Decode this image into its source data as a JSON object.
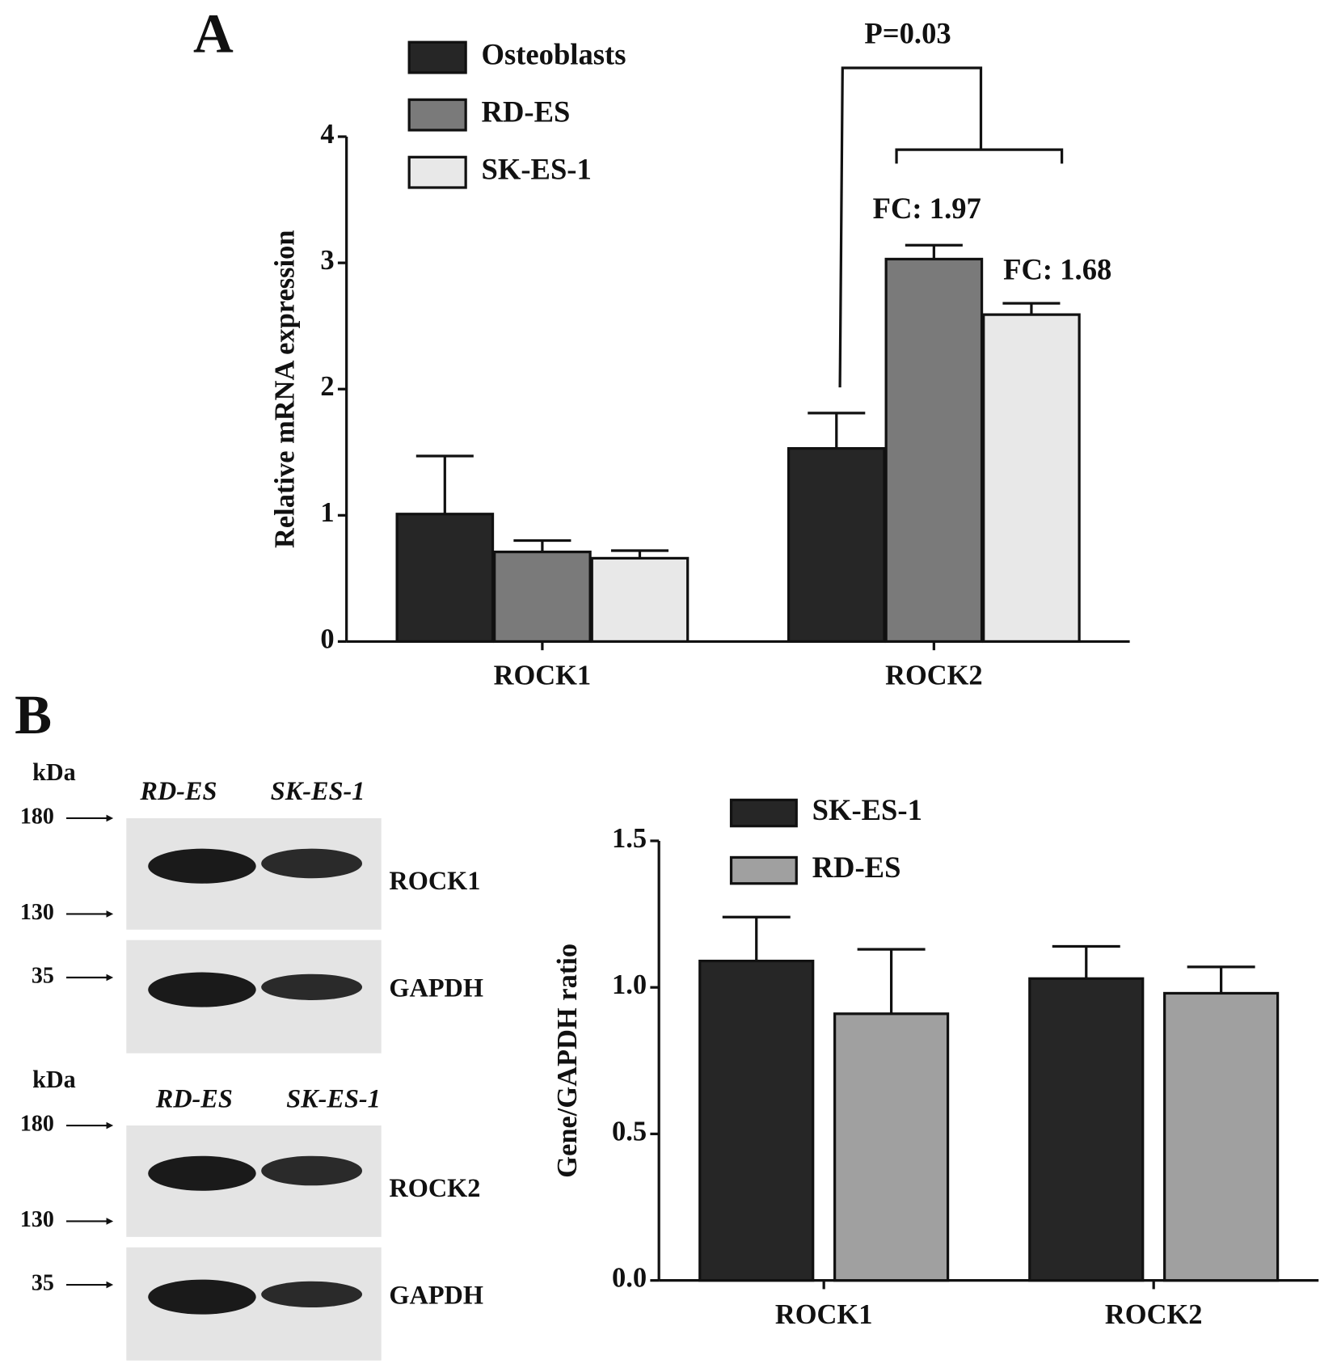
{
  "panels": [
    "A",
    "B"
  ],
  "chart_data": [
    {
      "type": "bar",
      "y_label": "Relative mRNA expression",
      "categories": [
        "ROCK1",
        "ROCK2"
      ],
      "series": [
        {
          "name": "Osteoblasts",
          "color": "#262626",
          "values": [
            1.01,
            1.53
          ],
          "errors": [
            0.46,
            0.28
          ]
        },
        {
          "name": "RD-ES",
          "color": "#7a7a7a",
          "values": [
            0.71,
            3.03
          ],
          "errors": [
            0.09,
            0.11
          ]
        },
        {
          "name": "SK-ES-1",
          "color": "#e8e8e8",
          "values": [
            0.66,
            2.59
          ],
          "errors": [
            0.06,
            0.09
          ]
        }
      ],
      "annotations": [
        "P=0.03",
        "FC: 1.97",
        "FC: 1.68"
      ],
      "ylim": [
        0,
        4
      ],
      "yticks": [
        0,
        1,
        2,
        3,
        4
      ]
    },
    {
      "type": "bar",
      "y_label": "Gene/GAPDH ratio",
      "categories": [
        "ROCK1",
        "ROCK2"
      ],
      "series": [
        {
          "name": "SK-ES-1",
          "color": "#262626",
          "values": [
            1.09,
            1.03
          ],
          "errors": [
            0.15,
            0.11
          ]
        },
        {
          "name": "RD-ES",
          "color": "#a0a0a0",
          "values": [
            0.91,
            0.98
          ],
          "errors": [
            0.22,
            0.09
          ]
        }
      ],
      "ylim": [
        0,
        1.5
      ],
      "yticks": [
        {
          "value": 0,
          "label": "0.0"
        },
        0.5,
        {
          "value": 1,
          "label": "1.0"
        },
        1.5
      ]
    }
  ],
  "blots": [
    {
      "unit": "kDa",
      "lanes": [
        "RD-ES",
        "SK-ES-1"
      ],
      "markers": [
        180,
        130,
        35
      ],
      "bands": [
        "ROCK1",
        "GAPDH"
      ]
    },
    {
      "unit": "kDa",
      "lanes": [
        "RD-ES",
        "SK-ES-1"
      ],
      "markers": [
        180,
        130,
        35
      ],
      "bands": [
        "ROCK2",
        "GAPDH"
      ]
    }
  ]
}
